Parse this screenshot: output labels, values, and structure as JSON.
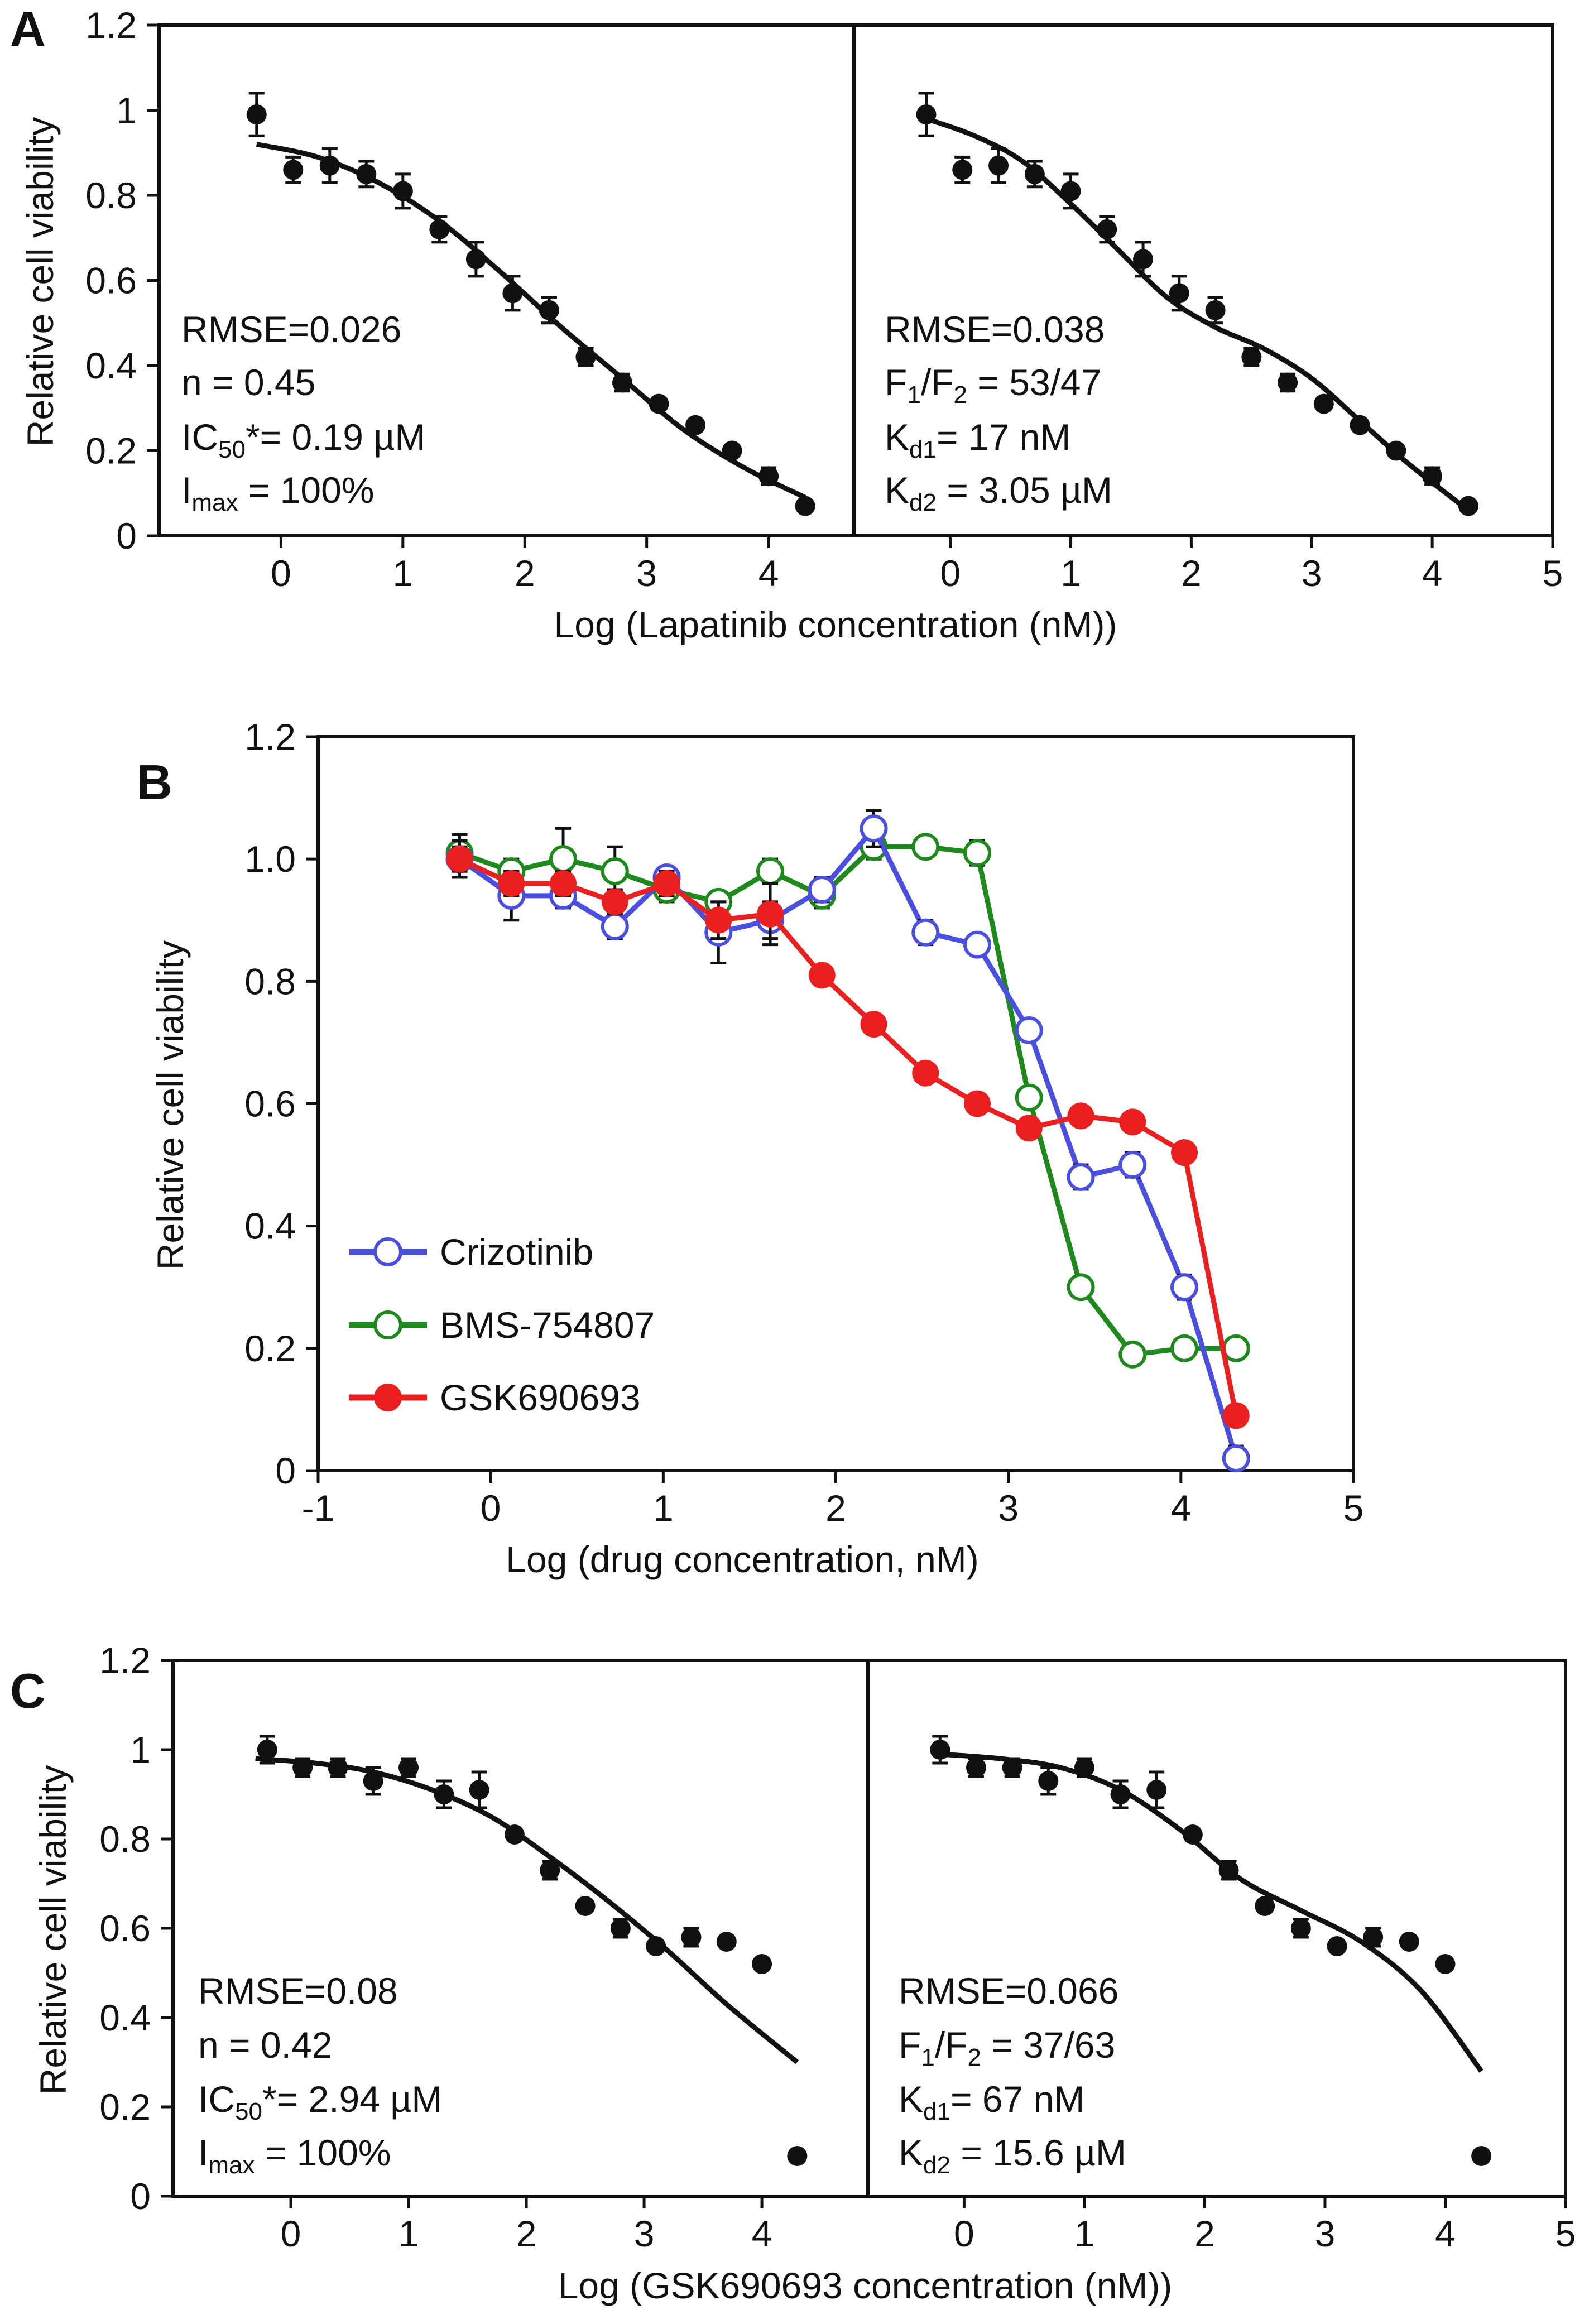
{
  "figure": {
    "panels": {
      "A": "A",
      "B": "B",
      "C": "C"
    },
    "xlabels": {
      "A": "Log (Lapatinib concentration (nM))",
      "B": "Log (drug concentration, nM)",
      "C": "Log (GSK690693 concentration (nM))"
    },
    "ylabel": "Relative cell viability"
  },
  "annotations": {
    "A1": {
      "l1": "RMSE=0.026",
      "l2": "n = 0.45",
      "l3_pre": "IC",
      "l3_sub": "50",
      "l3_post": "*= 0.19 µM",
      "l4_pre": "I",
      "l4_sub": "max",
      "l4_post": " = 100%"
    },
    "A2": {
      "l1": "RMSE=0.038",
      "l2_a": "F",
      "l2_s1": "1",
      "l2_b": "/F",
      "l2_s2": "2",
      "l2_c": " = 53/47",
      "l3_pre": "K",
      "l3_sub": "d1",
      "l3_post": "= 17 nM",
      "l4_pre": "K",
      "l4_sub": "d2",
      "l4_post": " = 3.05 µM"
    },
    "C1": {
      "l1": "RMSE=0.08",
      "l2": "n = 0.42",
      "l3_pre": "IC",
      "l3_sub": "50",
      "l3_post": "*= 2.94 µM",
      "l4_pre": "I",
      "l4_sub": "max",
      "l4_post": " = 100%"
    },
    "C2": {
      "l1": "RMSE=0.066",
      "l2_a": "F",
      "l2_s1": "1",
      "l2_b": "/F",
      "l2_s2": "2",
      "l2_c": " = 37/63",
      "l3_pre": "K",
      "l3_sub": "d1",
      "l3_post": "= 67 nM",
      "l4_pre": "K",
      "l4_sub": "d2",
      "l4_post": " = 15.6 µM"
    }
  },
  "chart_data": [
    {
      "id": "A1",
      "type": "scatter",
      "title": "",
      "xlabel": "Log (Lapatinib concentration (nM))",
      "ylabel": "Relative cell viability",
      "xlim": [
        -1,
        4.7
      ],
      "ylim": [
        0,
        1.2
      ],
      "xticks": [
        0,
        1,
        2,
        3,
        4
      ],
      "yticks": [
        0,
        0.2,
        0.4,
        0.6,
        0.8,
        1,
        1.2
      ],
      "ytick_labels": [
        "0",
        "0.2",
        "0.4",
        "0.6",
        "0.8",
        "1",
        "1.2"
      ],
      "x": [
        -0.2,
        0.1,
        0.4,
        0.7,
        1.0,
        1.3,
        1.6,
        1.9,
        2.2,
        2.5,
        2.8,
        3.1,
        3.4,
        3.7,
        4.0,
        4.3
      ],
      "y": [
        0.99,
        0.86,
        0.87,
        0.85,
        0.81,
        0.72,
        0.65,
        0.57,
        0.53,
        0.42,
        0.36,
        0.31,
        0.26,
        0.2,
        0.14,
        0.07
      ],
      "yerr": [
        0.05,
        0.03,
        0.04,
        0.03,
        0.04,
        0.03,
        0.04,
        0.04,
        0.03,
        0.02,
        0.02,
        0.01,
        0.01,
        0.01,
        0.02,
        0.01
      ],
      "fit": {
        "x": [
          -0.2,
          0.3,
          0.8,
          1.3,
          1.8,
          2.3,
          2.8,
          3.3,
          3.8,
          4.3
        ],
        "y": [
          0.92,
          0.89,
          0.83,
          0.74,
          0.62,
          0.49,
          0.37,
          0.25,
          0.16,
          0.09
        ]
      }
    },
    {
      "id": "A2",
      "type": "scatter",
      "title": "",
      "xlabel": "Log (Lapatinib concentration (nM))",
      "ylabel": "",
      "xlim": [
        -0.8,
        5
      ],
      "ylim": [
        0,
        1.2
      ],
      "xticks": [
        0,
        1,
        2,
        3,
        4,
        5
      ],
      "x": [
        -0.2,
        0.1,
        0.4,
        0.7,
        1.0,
        1.3,
        1.6,
        1.9,
        2.2,
        2.5,
        2.8,
        3.1,
        3.4,
        3.7,
        4.0,
        4.3
      ],
      "y": [
        0.99,
        0.86,
        0.87,
        0.85,
        0.81,
        0.72,
        0.65,
        0.57,
        0.53,
        0.42,
        0.36,
        0.31,
        0.26,
        0.2,
        0.14,
        0.07
      ],
      "yerr": [
        0.05,
        0.03,
        0.04,
        0.03,
        0.04,
        0.03,
        0.04,
        0.04,
        0.03,
        0.02,
        0.02,
        0.01,
        0.01,
        0.01,
        0.02,
        0.01
      ],
      "fit": {
        "x": [
          -0.2,
          0.2,
          0.6,
          1.0,
          1.4,
          1.8,
          2.2,
          2.6,
          3.0,
          3.4,
          3.8,
          4.3
        ],
        "y": [
          0.98,
          0.94,
          0.88,
          0.78,
          0.67,
          0.56,
          0.49,
          0.44,
          0.37,
          0.27,
          0.17,
          0.06
        ]
      }
    },
    {
      "id": "B",
      "type": "line",
      "title": "",
      "xlabel": "Log (drug concentration, nM)",
      "ylabel": "Relative cell viability",
      "xlim": [
        -1,
        5
      ],
      "ylim": [
        0,
        1.2
      ],
      "xticks": [
        -1,
        0,
        1,
        2,
        3,
        4,
        5
      ],
      "yticks": [
        0,
        0.2,
        0.4,
        0.6,
        0.8,
        1.0,
        1.2
      ],
      "ytick_labels": [
        "0",
        "0.2",
        "0.4",
        "0.6",
        "0.8",
        "1.0",
        "1.2"
      ],
      "legend_position": "lower-left",
      "series": [
        {
          "name": "Crizotinib",
          "color": "#4a4fe0",
          "marker": "open-circle",
          "x": [
            -0.18,
            0.12,
            0.42,
            0.72,
            1.02,
            1.32,
            1.62,
            1.92,
            2.22,
            2.52,
            2.82,
            3.12,
            3.42,
            3.72,
            4.02,
            4.32
          ],
          "y": [
            1.0,
            0.94,
            0.94,
            0.89,
            0.97,
            0.88,
            0.9,
            0.95,
            1.05,
            0.88,
            0.86,
            0.72,
            0.48,
            0.5,
            0.3,
            0.02
          ],
          "yerr": [
            0.03,
            0.04,
            0.02,
            0.02,
            0.01,
            0.05,
            0.03,
            0.02,
            0.03,
            0.02,
            0.01,
            0.01,
            0.02,
            0.02,
            0.02,
            0.02
          ]
        },
        {
          "name": "BMS-754807",
          "color": "#1e8a1e",
          "marker": "open-circle",
          "x": [
            -0.18,
            0.12,
            0.42,
            0.72,
            1.02,
            1.32,
            1.62,
            1.92,
            2.22,
            2.52,
            2.82,
            3.12,
            3.42,
            3.72,
            4.02,
            4.32
          ],
          "y": [
            1.01,
            0.98,
            1.0,
            0.98,
            0.95,
            0.93,
            0.98,
            0.94,
            1.02,
            1.02,
            1.01,
            0.61,
            0.3,
            0.19,
            0.2,
            0.2
          ],
          "yerr": [
            0.03,
            0.02,
            0.05,
            0.04,
            0.02,
            0.01,
            0.02,
            0.02,
            0.02,
            0.01,
            0.02,
            0.01,
            0.01,
            0.01,
            0.01,
            0.01
          ]
        },
        {
          "name": "GSK690693",
          "color": "#ea2020",
          "marker": "filled-circle",
          "x": [
            -0.18,
            0.12,
            0.42,
            0.72,
            1.02,
            1.32,
            1.62,
            1.92,
            2.22,
            2.52,
            2.82,
            3.12,
            3.42,
            3.72,
            4.02,
            4.32
          ],
          "y": [
            1.0,
            0.96,
            0.96,
            0.93,
            0.96,
            0.9,
            0.91,
            0.81,
            0.73,
            0.65,
            0.6,
            0.56,
            0.58,
            0.57,
            0.52,
            0.09
          ],
          "yerr": [
            0.02,
            0.02,
            0.02,
            0.02,
            0.02,
            0.03,
            0.05,
            0.01,
            0.01,
            0.01,
            0.01,
            0.01,
            0.01,
            0.01,
            0.01,
            0.01
          ]
        }
      ]
    },
    {
      "id": "C1",
      "type": "scatter",
      "title": "",
      "xlabel": "Log (GSK690693 concentration (nM))",
      "ylabel": "Relative cell viability",
      "xlim": [
        -1,
        4.9
      ],
      "ylim": [
        0,
        1.2
      ],
      "xticks": [
        0,
        1,
        2,
        3,
        4
      ],
      "yticks": [
        0,
        0.2,
        0.4,
        0.6,
        0.8,
        1,
        1.2
      ],
      "ytick_labels": [
        "0",
        "0.2",
        "0.4",
        "0.6",
        "0.8",
        "1",
        "1.2"
      ],
      "x": [
        -0.2,
        0.1,
        0.4,
        0.7,
        1.0,
        1.3,
        1.6,
        1.9,
        2.2,
        2.5,
        2.8,
        3.1,
        3.4,
        3.7,
        4.0,
        4.3
      ],
      "y": [
        1.0,
        0.96,
        0.96,
        0.93,
        0.96,
        0.9,
        0.91,
        0.81,
        0.73,
        0.65,
        0.6,
        0.56,
        0.58,
        0.57,
        0.52,
        0.09
      ],
      "yerr": [
        0.03,
        0.02,
        0.02,
        0.03,
        0.02,
        0.03,
        0.04,
        0.01,
        0.02,
        0.01,
        0.02,
        0.01,
        0.02,
        0.01,
        0.01,
        0.01
      ],
      "fit": {
        "x": [
          -0.3,
          0.2,
          0.7,
          1.2,
          1.7,
          2.2,
          2.7,
          3.2,
          3.7,
          4.3
        ],
        "y": [
          0.98,
          0.97,
          0.95,
          0.91,
          0.85,
          0.76,
          0.66,
          0.55,
          0.43,
          0.3
        ]
      }
    },
    {
      "id": "C2",
      "type": "scatter",
      "title": "",
      "xlabel": "Log (GSK690693 concentration (nM))",
      "ylabel": "",
      "xlim": [
        -0.8,
        5
      ],
      "ylim": [
        0,
        1.2
      ],
      "xticks": [
        0,
        1,
        2,
        3,
        4,
        5
      ],
      "x": [
        -0.2,
        0.1,
        0.4,
        0.7,
        1.0,
        1.3,
        1.6,
        1.9,
        2.2,
        2.5,
        2.8,
        3.1,
        3.4,
        3.7,
        4.0,
        4.3
      ],
      "y": [
        1.0,
        0.96,
        0.96,
        0.93,
        0.96,
        0.9,
        0.91,
        0.81,
        0.73,
        0.65,
        0.6,
        0.56,
        0.58,
        0.57,
        0.52,
        0.09
      ],
      "yerr": [
        0.03,
        0.02,
        0.02,
        0.03,
        0.02,
        0.03,
        0.04,
        0.01,
        0.02,
        0.01,
        0.02,
        0.01,
        0.02,
        0.01,
        0.01,
        0.01
      ],
      "fit": {
        "x": [
          -0.2,
          0.3,
          0.8,
          1.3,
          1.8,
          2.3,
          2.8,
          3.3,
          3.8,
          4.3
        ],
        "y": [
          0.99,
          0.98,
          0.96,
          0.91,
          0.82,
          0.71,
          0.64,
          0.57,
          0.46,
          0.28
        ]
      }
    }
  ]
}
